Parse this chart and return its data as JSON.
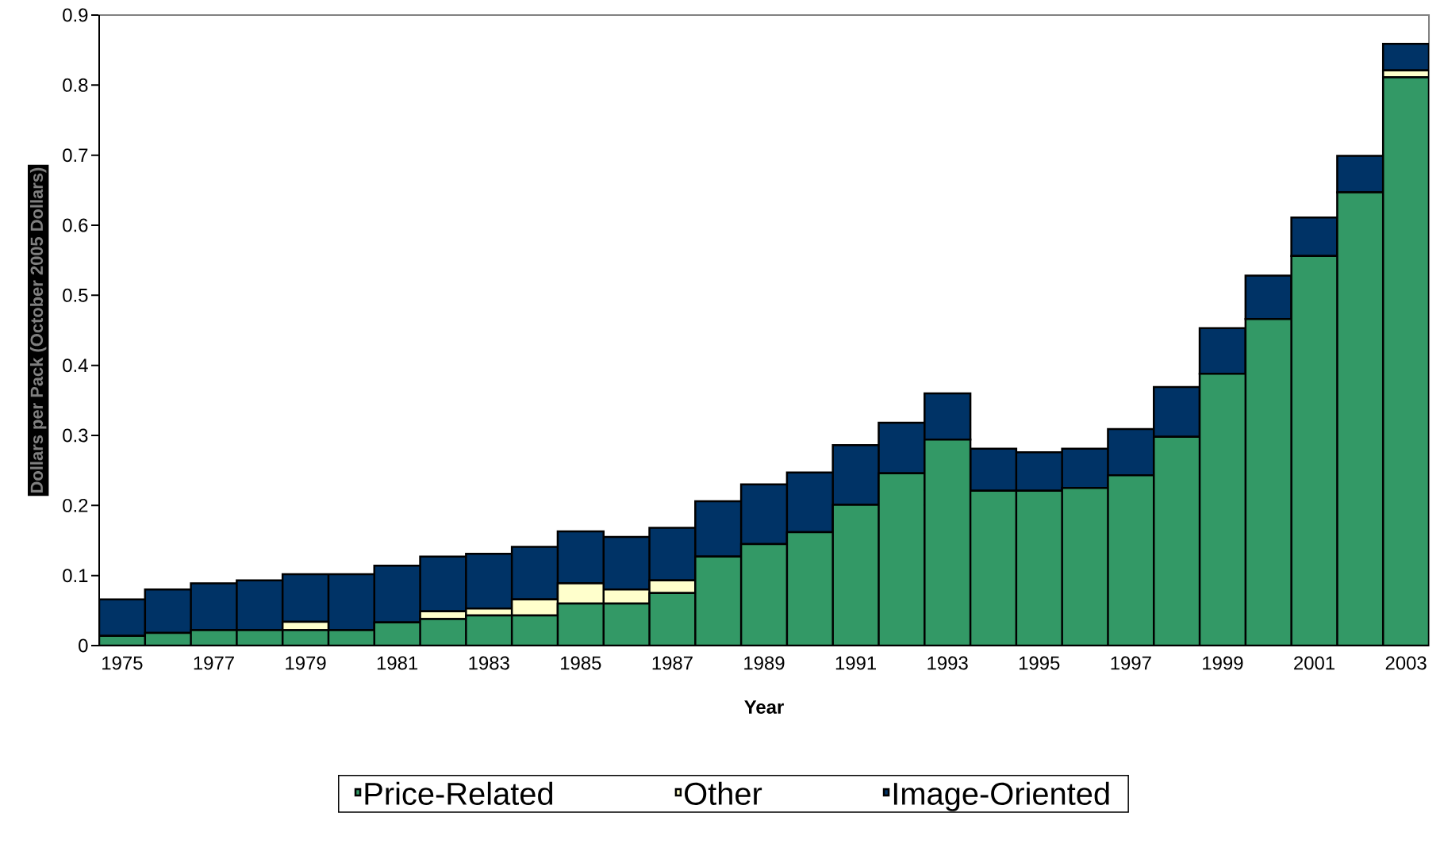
{
  "chart_data": {
    "type": "bar",
    "stacked": true,
    "categories": [
      "1975",
      null,
      "1977",
      null,
      "1979",
      null,
      "1981",
      null,
      "1983",
      null,
      "1985",
      null,
      "1987",
      null,
      "1989",
      null,
      "1991",
      null,
      "1993",
      null,
      "1995",
      null,
      "1997",
      null,
      "1999",
      null,
      "2001",
      null,
      "2003"
    ],
    "series": [
      {
        "name": "Price-Related",
        "color": "#339966",
        "values": [
          0.014,
          0.018,
          0.022,
          0.022,
          0.022,
          0.022,
          0.033,
          0.038,
          0.043,
          0.043,
          0.06,
          0.06,
          0.075,
          0.127,
          0.145,
          0.162,
          0.201,
          0.246,
          0.294,
          0.221,
          0.221,
          0.225,
          0.243,
          0.298,
          0.388,
          0.466,
          0.556,
          0.647,
          0.811
        ]
      },
      {
        "name": "Other",
        "color": "#ffffcc",
        "values": [
          0,
          0,
          0,
          0,
          0.012,
          0,
          0,
          0.011,
          0.01,
          0.023,
          0.029,
          0.02,
          0.018,
          0,
          0,
          0,
          0,
          0,
          0,
          0,
          0,
          0,
          0,
          0,
          0,
          0,
          0,
          0,
          0.01
        ]
      },
      {
        "name": "Image-Oriented",
        "color": "#003366",
        "values": [
          0.052,
          0.062,
          0.067,
          0.071,
          0.068,
          0.08,
          0.081,
          0.078,
          0.078,
          0.075,
          0.074,
          0.075,
          0.075,
          0.079,
          0.085,
          0.085,
          0.085,
          0.072,
          0.066,
          0.06,
          0.055,
          0.056,
          0.066,
          0.071,
          0.065,
          0.062,
          0.055,
          0.052,
          0.038
        ]
      }
    ],
    "xlabel": "Year",
    "ylabel": "Dollars per Pack (October 2005 Dollars)",
    "ylim": [
      0,
      0.9
    ],
    "yticks": [
      0,
      0.1,
      0.2,
      0.3,
      0.4,
      0.5,
      0.6,
      0.7,
      0.8,
      0.9
    ],
    "legend": "bottom",
    "grid": false
  }
}
